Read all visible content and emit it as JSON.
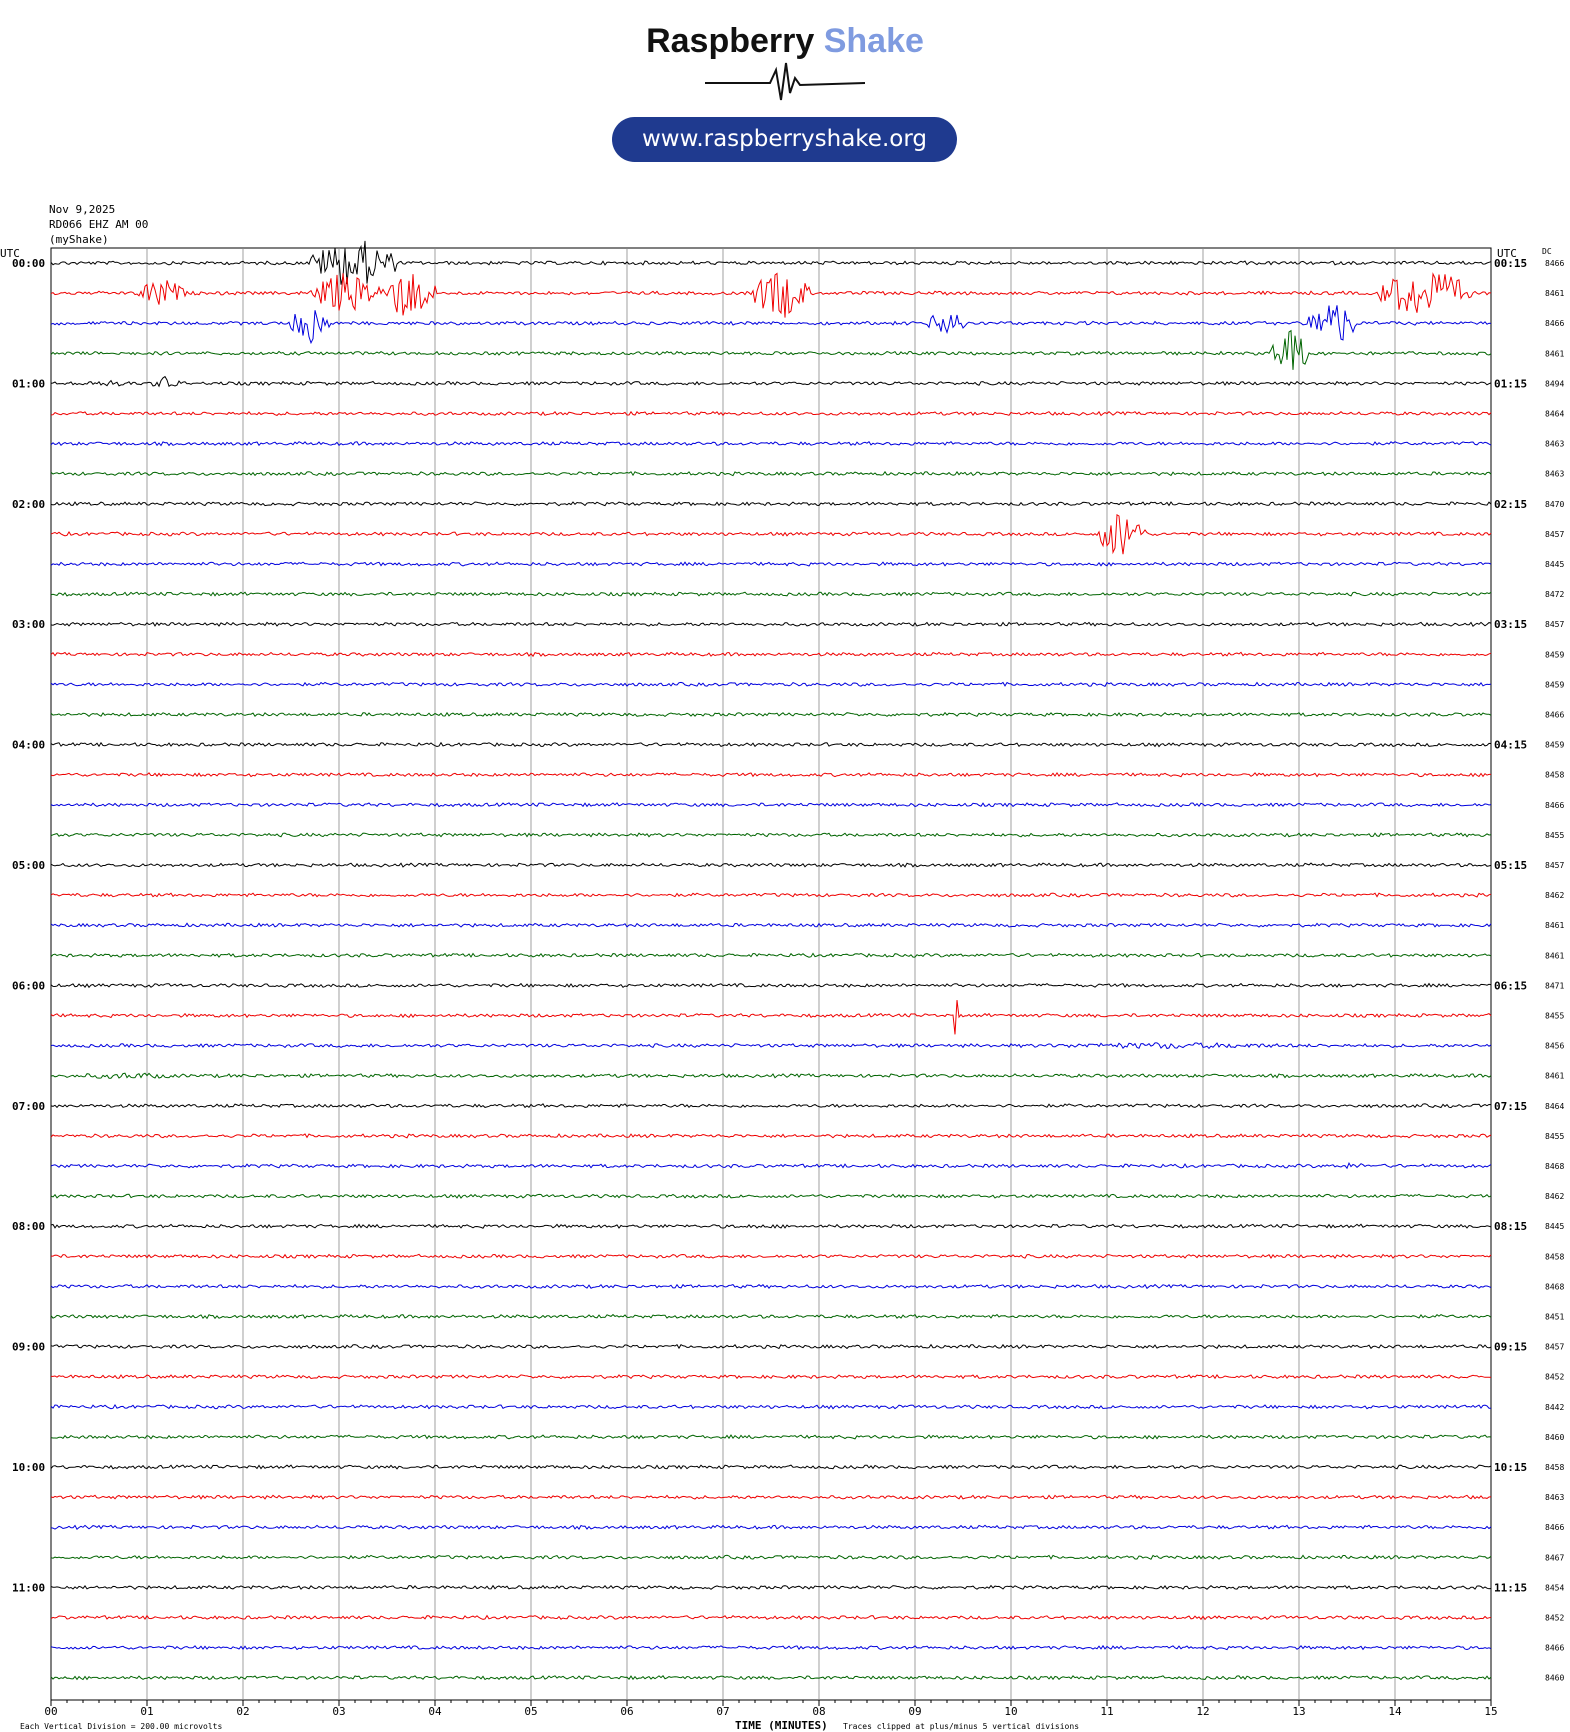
{
  "brand": {
    "name_part1": "Raspberry",
    "name_part2": "Shake",
    "url": "www.raspberryshake.org"
  },
  "header": {
    "date": "Nov 9,2025",
    "station": "RD066 EHZ AM 00",
    "network": "(myShake)"
  },
  "labels": {
    "left_tz": "UTC",
    "right_tz": "UTC",
    "dc_header": "DC",
    "xlabel": "TIME (MINUTES)",
    "footer_left": "Each Vertical Division =  200.00 microvolts",
    "footer_right": "Traces clipped at plus/minus 5 vertical divisions"
  },
  "colors": {
    "cycle": [
      "#000000",
      "#ee0000",
      "#0000dd",
      "#006400"
    ],
    "grid": "#888888"
  },
  "chart_data": {
    "type": "line",
    "title": "",
    "xlabel": "TIME (MINUTES)",
    "xlim": [
      0,
      15
    ],
    "x_ticks": [
      "00",
      "01",
      "02",
      "03",
      "04",
      "05",
      "06",
      "07",
      "08",
      "09",
      "10",
      "11",
      "12",
      "13",
      "14",
      "15"
    ],
    "trace_minutes": 15,
    "rows": 48,
    "left_hour_labels": [
      "00:00",
      "01:00",
      "02:00",
      "03:00",
      "04:00",
      "05:00",
      "06:00",
      "07:00",
      "08:00",
      "09:00",
      "10:00",
      "11:00"
    ],
    "right_hour_labels": [
      "00:15",
      "01:15",
      "02:15",
      "03:15",
      "04:15",
      "05:15",
      "06:15",
      "07:15",
      "08:15",
      "09:15",
      "10:15",
      "11:15"
    ],
    "dc_offsets": [
      "8466",
      "8461",
      "8466",
      "8461",
      "8494",
      "8464",
      "8463",
      "8463",
      "8470",
      "8457",
      "8445",
      "8472",
      "8457",
      "8459",
      "8459",
      "8466",
      "8459",
      "8458",
      "8466",
      "8455",
      "8457",
      "8462",
      "8461",
      "8461",
      "8471",
      "8455",
      "8456",
      "8461",
      "8464",
      "8455",
      "8468",
      "8462",
      "8445",
      "8458",
      "8468",
      "8451",
      "8457",
      "8452",
      "8442",
      "8460",
      "8458",
      "8463",
      "8466",
      "8467",
      "8454",
      "8452",
      "8466",
      "8460"
    ],
    "events": [
      {
        "row": 0,
        "start_min": 2.7,
        "end_min": 3.6,
        "amp_div": 5,
        "desc": "burst"
      },
      {
        "row": 1,
        "start_min": 0.9,
        "end_min": 1.4,
        "amp_div": 3
      },
      {
        "row": 1,
        "start_min": 2.7,
        "end_min": 3.4,
        "amp_div": 4
      },
      {
        "row": 1,
        "start_min": 3.4,
        "end_min": 4.0,
        "amp_div": 5
      },
      {
        "row": 1,
        "start_min": 7.3,
        "end_min": 7.9,
        "amp_div": 5
      },
      {
        "row": 1,
        "start_min": 13.8,
        "end_min": 14.8,
        "amp_div": 5
      },
      {
        "row": 2,
        "start_min": 2.5,
        "end_min": 2.9,
        "amp_div": 4
      },
      {
        "row": 2,
        "start_min": 9.1,
        "end_min": 9.6,
        "amp_div": 2.5
      },
      {
        "row": 2,
        "start_min": 13.1,
        "end_min": 13.6,
        "amp_div": 5
      },
      {
        "row": 3,
        "start_min": 12.7,
        "end_min": 13.1,
        "amp_div": 5
      },
      {
        "row": 4,
        "start_min": 0.1,
        "end_min": 1.0,
        "amp_div": 1
      },
      {
        "row": 4,
        "start_min": 1.0,
        "end_min": 1.4,
        "amp_div": 1.5
      },
      {
        "row": 9,
        "start_min": 10.9,
        "end_min": 11.4,
        "amp_div": 5
      },
      {
        "row": 25,
        "start_min": 9.4,
        "end_min": 9.45,
        "amp_div": 5
      },
      {
        "row": 26,
        "start_min": 9.8,
        "end_min": 13.5,
        "amp_div": 1
      },
      {
        "row": 27,
        "start_min": 0.0,
        "end_min": 1.6,
        "amp_div": 1
      },
      {
        "row": 30,
        "start_min": 13.3,
        "end_min": 13.8,
        "amp_div": 1
      },
      {
        "row": 32,
        "start_min": 6.3,
        "end_min": 8.4,
        "amp_div": 0.6
      }
    ]
  }
}
